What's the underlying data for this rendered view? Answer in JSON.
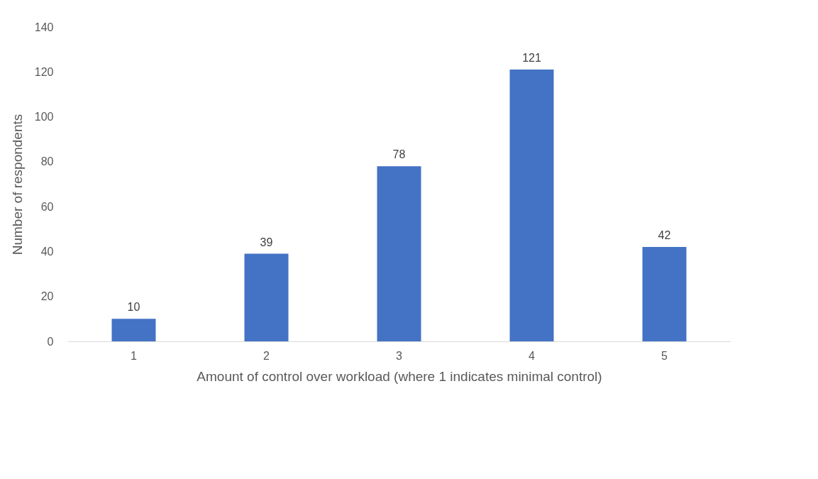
{
  "chart_data": {
    "type": "bar",
    "xlabel": "Amount of control over workload (where 1 indicates minimal control)",
    "ylabel": "Number of respondents",
    "categories": [
      "1",
      "2",
      "3",
      "4",
      "5"
    ],
    "values": [
      10,
      39,
      78,
      121,
      42
    ],
    "color": "#4472c4",
    "ylim": [
      0,
      140
    ],
    "yticks": [
      0,
      20,
      40,
      60,
      80,
      100,
      120,
      140
    ],
    "grid": false,
    "data_labels": true
  }
}
